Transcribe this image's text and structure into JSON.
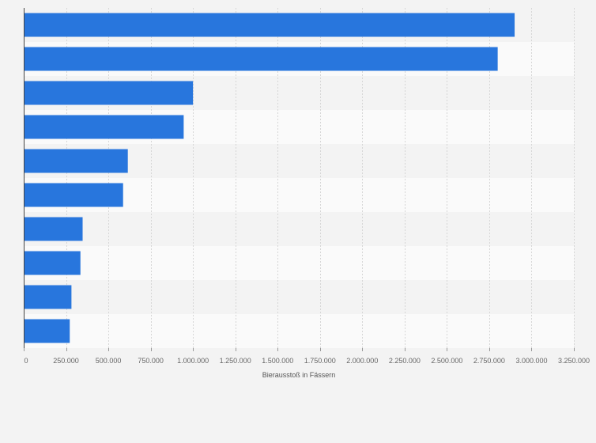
{
  "chart_data": {
    "type": "bar",
    "orientation": "horizontal",
    "title": "",
    "xlabel": "Bierausstoß in Fässern",
    "ylabel": "",
    "categories": [
      "",
      "",
      "",
      "",
      "",
      "",
      "",
      "",
      "",
      ""
    ],
    "values": [
      2900000,
      2800000,
      1000000,
      945000,
      615000,
      587000,
      348000,
      335000,
      282000,
      272000
    ],
    "xlim": [
      0,
      3250000
    ],
    "x_ticks": [
      0,
      250000,
      500000,
      750000,
      1000000,
      1250000,
      1500000,
      1750000,
      2000000,
      2250000,
      2500000,
      2750000,
      3000000,
      3250000
    ],
    "x_tick_labels": [
      "0",
      "250.000",
      "500.000",
      "750.000",
      "1.000.000",
      "1.250.000",
      "1.500.000",
      "1.750.000",
      "2.000.000",
      "2.250.000",
      "2.500.000",
      "2.750.000",
      "3.000.000",
      "3.250.000"
    ],
    "grid": true,
    "bar_color": "#2876dd"
  }
}
